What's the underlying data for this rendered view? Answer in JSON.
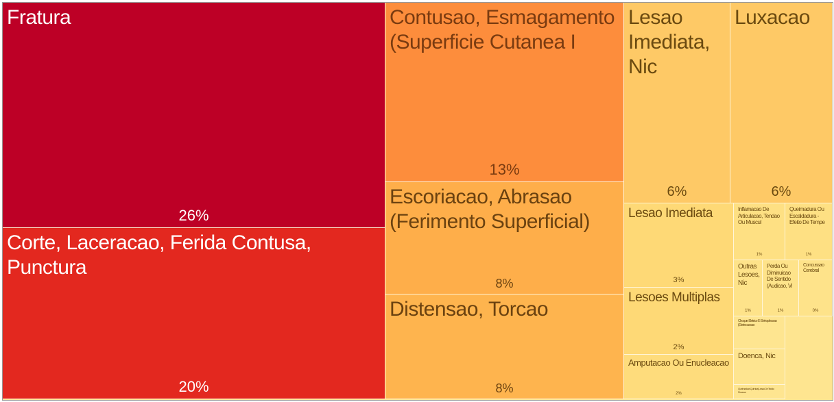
{
  "chart_data": {
    "type": "treemap",
    "categories": [
      "Fratura",
      "Corte, Laceracao, Ferida Contusa, Punctura",
      "Contusao, Esmagamento (Superficie Cutanea I",
      "Escoriacao, Abrasao (Ferimento Superficial)",
      "Distensao, Torcao",
      "Lesao Imediata, Nic",
      "Luxacao",
      "Lesao Imediata",
      "Lesoes Multiplas",
      "Amputacao Ou Enucleacao",
      "Inflamacao De Articulacao, Tendao Ou Muscul",
      "Queimadura Ou Escaldadura - Efeito De Tempe",
      "Outras Lesoes, Nic",
      "Perda Ou Diminuicao De Sentido (Audicao, Vi",
      "Concussao Cerebral",
      "Choque Eletrico E Eletroplessao (Eletrocussao",
      "Doenca, Nic",
      "Queimadura Quimica (Lesao De Tecido Provoca"
    ],
    "values": [
      26,
      20,
      13,
      8,
      8,
      6,
      6,
      3,
      2,
      2,
      1,
      1,
      1,
      1,
      0,
      0,
      0,
      0
    ],
    "value_labels": [
      "26%",
      "20%",
      "13%",
      "8%",
      "8%",
      "6%",
      "6%",
      "3%",
      "2%",
      "2%",
      "1%",
      "1%",
      "1%",
      "1%",
      "0%",
      null,
      null,
      null
    ],
    "colors": [
      "#bd0026",
      "#e3281f",
      "#fd8d3c",
      "#feae4a",
      "#feb44e",
      "#fec966",
      "#fec966",
      "#fed976",
      "#fed976",
      "#fedc7c",
      "#fee083",
      "#fee083",
      "#fee38a",
      "#fee38a",
      "#fee38a",
      "#fee590",
      "#fee590",
      "#fee590"
    ]
  }
}
